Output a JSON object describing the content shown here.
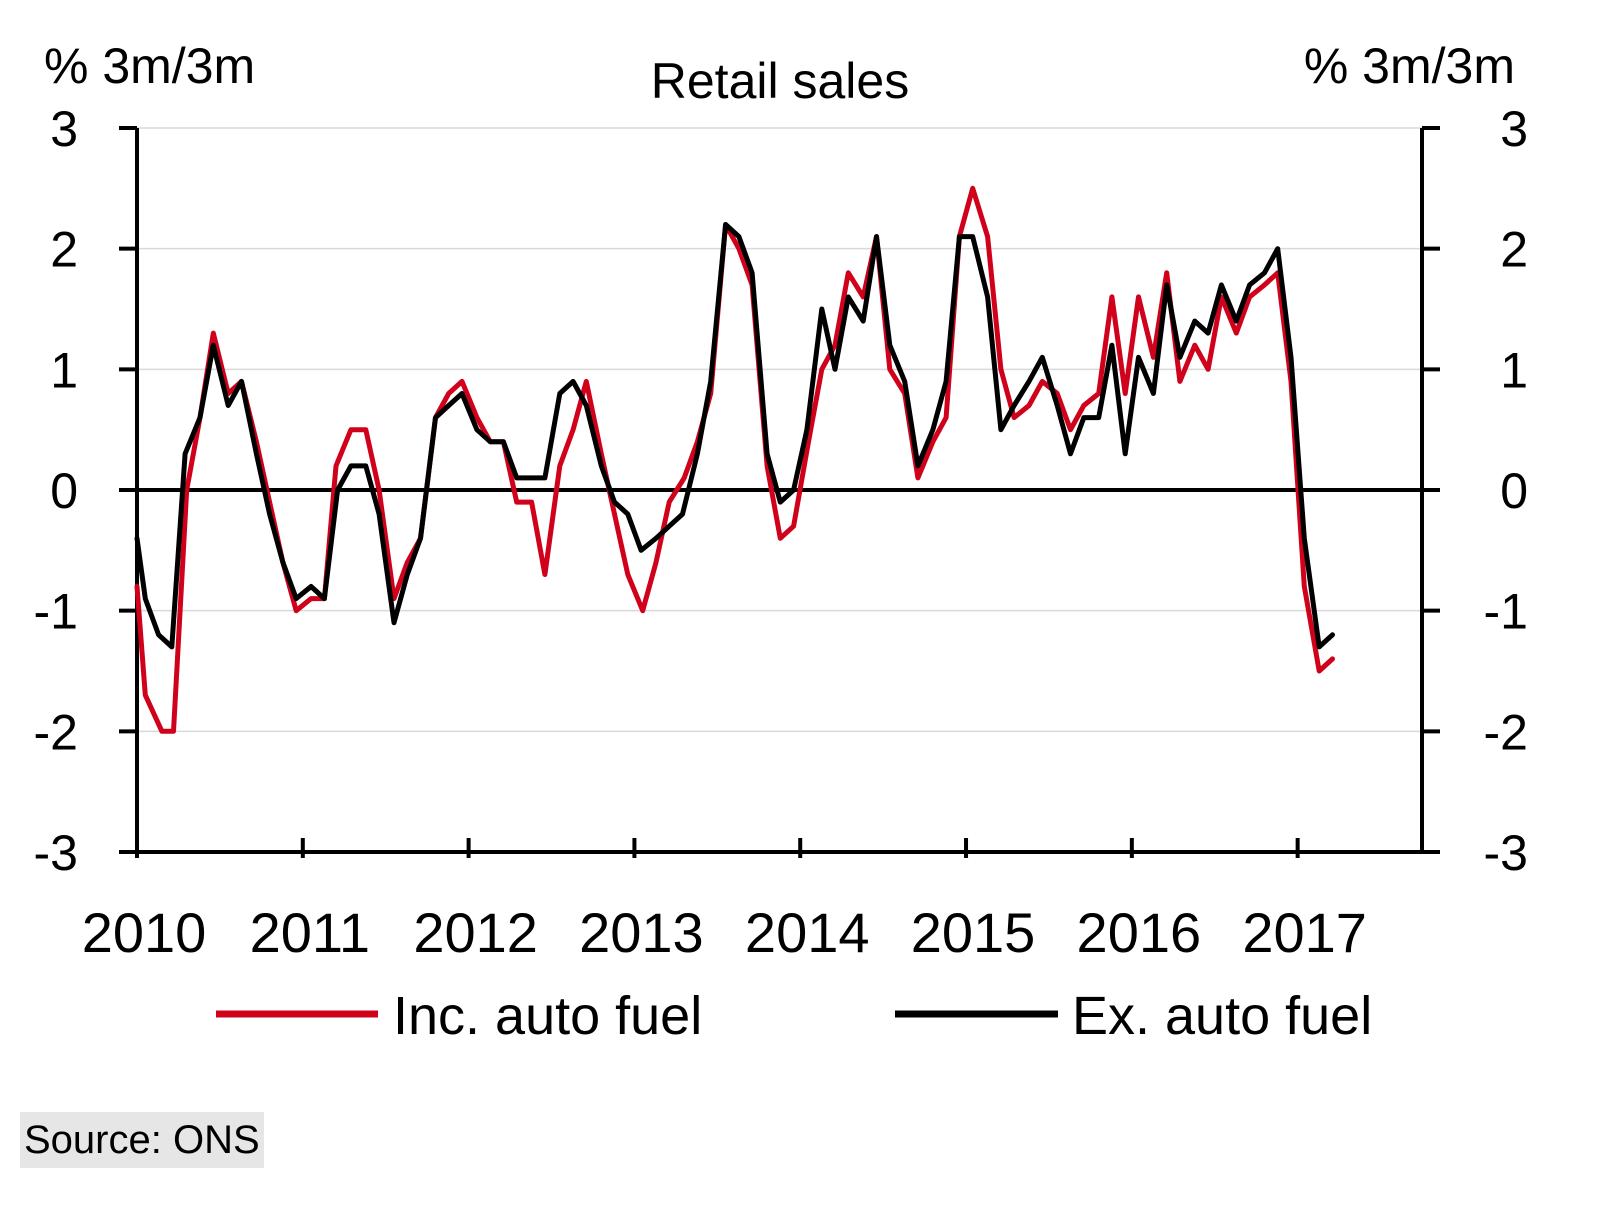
{
  "chart_data": {
    "type": "line",
    "title": "Retail sales",
    "ylabel_left": "% 3m/3m",
    "ylabel_right": "% 3m/3m",
    "ylim": [
      -3,
      3
    ],
    "yticks": [
      "3",
      "2",
      "1",
      "0",
      "-1",
      "-2",
      "-3"
    ],
    "ytick_values": [
      3,
      2,
      1,
      0,
      -1,
      -2,
      -3
    ],
    "xlim": [
      2010,
      2017.75
    ],
    "xticks": [
      "2010",
      "2011",
      "2012",
      "2013",
      "2014",
      "2015",
      "2016",
      "2017"
    ],
    "xtick_values": [
      2010,
      2011,
      2012,
      2013,
      2014,
      2015,
      2016,
      2017
    ],
    "grid": true,
    "zero_line": true,
    "legend_position": "bottom",
    "series": [
      {
        "name": "Inc. auto fuel",
        "color": "#d0021b",
        "points": [
          [
            2010.0,
            -0.8
          ],
          [
            2010.05,
            -1.7
          ],
          [
            2010.15,
            -2.0
          ],
          [
            2010.22,
            -2.0
          ],
          [
            2010.3,
            0.0
          ],
          [
            2010.38,
            0.6
          ],
          [
            2010.46,
            1.3
          ],
          [
            2010.55,
            0.8
          ],
          [
            2010.63,
            0.9
          ],
          [
            2010.72,
            0.4
          ],
          [
            2010.8,
            -0.1
          ],
          [
            2010.88,
            -0.6
          ],
          [
            2010.96,
            -1.0
          ],
          [
            2011.05,
            -0.9
          ],
          [
            2011.13,
            -0.9
          ],
          [
            2011.2,
            0.2
          ],
          [
            2011.29,
            0.5
          ],
          [
            2011.38,
            0.5
          ],
          [
            2011.46,
            0.0
          ],
          [
            2011.55,
            -0.9
          ],
          [
            2011.63,
            -0.6
          ],
          [
            2011.71,
            -0.4
          ],
          [
            2011.8,
            0.6
          ],
          [
            2011.88,
            0.8
          ],
          [
            2011.96,
            0.9
          ],
          [
            2012.05,
            0.6
          ],
          [
            2012.13,
            0.4
          ],
          [
            2012.21,
            0.4
          ],
          [
            2012.29,
            -0.1
          ],
          [
            2012.38,
            -0.1
          ],
          [
            2012.46,
            -0.7
          ],
          [
            2012.55,
            0.2
          ],
          [
            2012.63,
            0.5
          ],
          [
            2012.71,
            0.9
          ],
          [
            2012.8,
            0.3
          ],
          [
            2012.88,
            -0.2
          ],
          [
            2012.96,
            -0.7
          ],
          [
            2013.05,
            -1.0
          ],
          [
            2013.13,
            -0.6
          ],
          [
            2013.21,
            -0.1
          ],
          [
            2013.3,
            0.1
          ],
          [
            2013.38,
            0.4
          ],
          [
            2013.46,
            0.8
          ],
          [
            2013.55,
            2.2
          ],
          [
            2013.63,
            2.0
          ],
          [
            2013.71,
            1.7
          ],
          [
            2013.8,
            0.2
          ],
          [
            2013.88,
            -0.4
          ],
          [
            2013.96,
            -0.3
          ],
          [
            2014.05,
            0.4
          ],
          [
            2014.13,
            1.0
          ],
          [
            2014.21,
            1.2
          ],
          [
            2014.29,
            1.8
          ],
          [
            2014.38,
            1.6
          ],
          [
            2014.46,
            2.1
          ],
          [
            2014.54,
            1.0
          ],
          [
            2014.63,
            0.8
          ],
          [
            2014.71,
            0.1
          ],
          [
            2014.8,
            0.4
          ],
          [
            2014.88,
            0.6
          ],
          [
            2014.96,
            2.1
          ],
          [
            2015.04,
            2.5
          ],
          [
            2015.13,
            2.1
          ],
          [
            2015.21,
            1.0
          ],
          [
            2015.29,
            0.6
          ],
          [
            2015.38,
            0.7
          ],
          [
            2015.46,
            0.9
          ],
          [
            2015.55,
            0.8
          ],
          [
            2015.63,
            0.5
          ],
          [
            2015.71,
            0.7
          ],
          [
            2015.8,
            0.8
          ],
          [
            2015.88,
            1.6
          ],
          [
            2015.96,
            0.8
          ],
          [
            2016.04,
            1.6
          ],
          [
            2016.13,
            1.1
          ],
          [
            2016.21,
            1.8
          ],
          [
            2016.29,
            0.9
          ],
          [
            2016.38,
            1.2
          ],
          [
            2016.46,
            1.0
          ],
          [
            2016.54,
            1.6
          ],
          [
            2016.63,
            1.3
          ],
          [
            2016.71,
            1.6
          ],
          [
            2016.8,
            1.7
          ],
          [
            2016.88,
            1.8
          ],
          [
            2016.96,
            0.9
          ],
          [
            2017.04,
            -0.8
          ],
          [
            2017.13,
            -1.5
          ],
          [
            2017.21,
            -1.4
          ]
        ]
      },
      {
        "name": "Ex. auto fuel",
        "color": "#000000",
        "points": [
          [
            2010.0,
            -0.4
          ],
          [
            2010.05,
            -0.9
          ],
          [
            2010.13,
            -1.2
          ],
          [
            2010.21,
            -1.3
          ],
          [
            2010.29,
            0.3
          ],
          [
            2010.38,
            0.6
          ],
          [
            2010.46,
            1.2
          ],
          [
            2010.55,
            0.7
          ],
          [
            2010.63,
            0.9
          ],
          [
            2010.72,
            0.3
          ],
          [
            2010.8,
            -0.2
          ],
          [
            2010.88,
            -0.6
          ],
          [
            2010.96,
            -0.9
          ],
          [
            2011.05,
            -0.8
          ],
          [
            2011.13,
            -0.9
          ],
          [
            2011.21,
            0.0
          ],
          [
            2011.29,
            0.2
          ],
          [
            2011.38,
            0.2
          ],
          [
            2011.46,
            -0.2
          ],
          [
            2011.55,
            -1.1
          ],
          [
            2011.63,
            -0.7
          ],
          [
            2011.71,
            -0.4
          ],
          [
            2011.8,
            0.6
          ],
          [
            2011.88,
            0.7
          ],
          [
            2011.96,
            0.8
          ],
          [
            2012.05,
            0.5
          ],
          [
            2012.13,
            0.4
          ],
          [
            2012.21,
            0.4
          ],
          [
            2012.29,
            0.1
          ],
          [
            2012.38,
            0.1
          ],
          [
            2012.46,
            0.1
          ],
          [
            2012.55,
            0.8
          ],
          [
            2012.63,
            0.9
          ],
          [
            2012.71,
            0.7
          ],
          [
            2012.8,
            0.2
          ],
          [
            2012.88,
            -0.1
          ],
          [
            2012.96,
            -0.2
          ],
          [
            2013.04,
            -0.5
          ],
          [
            2013.13,
            -0.4
          ],
          [
            2013.21,
            -0.3
          ],
          [
            2013.29,
            -0.2
          ],
          [
            2013.38,
            0.3
          ],
          [
            2013.46,
            0.9
          ],
          [
            2013.55,
            2.2
          ],
          [
            2013.63,
            2.1
          ],
          [
            2013.71,
            1.8
          ],
          [
            2013.8,
            0.3
          ],
          [
            2013.88,
            -0.1
          ],
          [
            2013.96,
            0.0
          ],
          [
            2014.04,
            0.5
          ],
          [
            2014.13,
            1.5
          ],
          [
            2014.21,
            1.0
          ],
          [
            2014.29,
            1.6
          ],
          [
            2014.38,
            1.4
          ],
          [
            2014.46,
            2.1
          ],
          [
            2014.54,
            1.2
          ],
          [
            2014.63,
            0.9
          ],
          [
            2014.71,
            0.2
          ],
          [
            2014.8,
            0.5
          ],
          [
            2014.88,
            0.9
          ],
          [
            2014.96,
            2.1
          ],
          [
            2015.04,
            2.1
          ],
          [
            2015.13,
            1.6
          ],
          [
            2015.21,
            0.5
          ],
          [
            2015.29,
            0.7
          ],
          [
            2015.38,
            0.9
          ],
          [
            2015.46,
            1.1
          ],
          [
            2015.55,
            0.7
          ],
          [
            2015.63,
            0.3
          ],
          [
            2015.71,
            0.6
          ],
          [
            2015.8,
            0.6
          ],
          [
            2015.88,
            1.2
          ],
          [
            2015.96,
            0.3
          ],
          [
            2016.04,
            1.1
          ],
          [
            2016.13,
            0.8
          ],
          [
            2016.21,
            1.7
          ],
          [
            2016.29,
            1.1
          ],
          [
            2016.38,
            1.4
          ],
          [
            2016.46,
            1.3
          ],
          [
            2016.54,
            1.7
          ],
          [
            2016.63,
            1.4
          ],
          [
            2016.71,
            1.7
          ],
          [
            2016.8,
            1.8
          ],
          [
            2016.88,
            2.0
          ],
          [
            2016.96,
            1.1
          ],
          [
            2017.04,
            -0.4
          ],
          [
            2017.13,
            -1.3
          ],
          [
            2017.21,
            -1.2
          ]
        ]
      }
    ],
    "source": "Source: ONS"
  }
}
